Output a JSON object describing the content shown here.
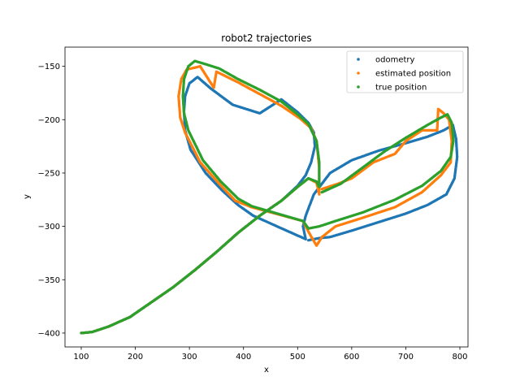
{
  "chart_data": {
    "type": "scatter",
    "title": "robot2 trajectories",
    "xlabel": "x",
    "ylabel": "y",
    "xlim": [
      70,
      815
    ],
    "ylim": [
      -413,
      -132
    ],
    "x_ticks": [
      100,
      200,
      300,
      400,
      500,
      600,
      700,
      800
    ],
    "y_ticks": [
      -400,
      -350,
      -300,
      -250,
      -200,
      -150
    ],
    "grid": false,
    "legend_position": "top-right",
    "series": [
      {
        "name": "odometry",
        "color": "#1f77b4",
        "points": [
          [
            100,
            -400
          ],
          [
            120,
            -399
          ],
          [
            150,
            -394
          ],
          [
            190,
            -385
          ],
          [
            230,
            -371
          ],
          [
            270,
            -357
          ],
          [
            310,
            -341
          ],
          [
            350,
            -324
          ],
          [
            390,
            -306
          ],
          [
            430,
            -290
          ],
          [
            470,
            -276
          ],
          [
            500,
            -262
          ],
          [
            515,
            -252
          ],
          [
            525,
            -240
          ],
          [
            532,
            -225
          ],
          [
            530,
            -212
          ],
          [
            520,
            -203
          ],
          [
            500,
            -193
          ],
          [
            470,
            -181
          ],
          [
            430,
            -194
          ],
          [
            380,
            -186
          ],
          [
            340,
            -171
          ],
          [
            315,
            -160
          ],
          [
            300,
            -166
          ],
          [
            292,
            -178
          ],
          [
            290,
            -192
          ],
          [
            292,
            -210
          ],
          [
            302,
            -228
          ],
          [
            330,
            -250
          ],
          [
            360,
            -266
          ],
          [
            390,
            -280
          ],
          [
            418,
            -290
          ],
          [
            515,
            -312
          ],
          [
            510,
            -300
          ],
          [
            515,
            -290
          ],
          [
            530,
            -270
          ],
          [
            560,
            -250
          ],
          [
            600,
            -238
          ],
          [
            650,
            -229
          ],
          [
            700,
            -222
          ],
          [
            740,
            -216
          ],
          [
            770,
            -210
          ],
          [
            787,
            -205
          ],
          [
            793,
            -218
          ],
          [
            795,
            -235
          ],
          [
            790,
            -255
          ],
          [
            775,
            -270
          ],
          [
            740,
            -280
          ],
          [
            700,
            -288
          ],
          [
            650,
            -296
          ],
          [
            600,
            -304
          ],
          [
            560,
            -310
          ],
          [
            540,
            -311
          ],
          [
            520,
            -313
          ]
        ]
      },
      {
        "name": "estimated position",
        "color": "#ff7f0e",
        "points": [
          [
            100,
            -400
          ],
          [
            120,
            -399
          ],
          [
            150,
            -394
          ],
          [
            190,
            -385
          ],
          [
            230,
            -371
          ],
          [
            270,
            -357
          ],
          [
            310,
            -341
          ],
          [
            350,
            -324
          ],
          [
            390,
            -306
          ],
          [
            430,
            -290
          ],
          [
            470,
            -276
          ],
          [
            500,
            -263
          ],
          [
            520,
            -255
          ],
          [
            535,
            -259
          ],
          [
            540,
            -270
          ],
          [
            540,
            -245
          ],
          [
            535,
            -220
          ],
          [
            525,
            -208
          ],
          [
            505,
            -199
          ],
          [
            470,
            -187
          ],
          [
            430,
            -176
          ],
          [
            390,
            -165
          ],
          [
            350,
            -155
          ],
          [
            345,
            -170
          ],
          [
            335,
            -162
          ],
          [
            320,
            -150
          ],
          [
            295,
            -153
          ],
          [
            285,
            -162
          ],
          [
            280,
            -178
          ],
          [
            283,
            -198
          ],
          [
            292,
            -212
          ],
          [
            320,
            -240
          ],
          [
            355,
            -260
          ],
          [
            385,
            -276
          ],
          [
            415,
            -282
          ],
          [
            510,
            -295
          ],
          [
            520,
            -305
          ],
          [
            535,
            -318
          ],
          [
            545,
            -310
          ],
          [
            570,
            -300
          ],
          [
            620,
            -292
          ],
          [
            680,
            -282
          ],
          [
            730,
            -268
          ],
          [
            765,
            -252
          ],
          [
            783,
            -240
          ],
          [
            785,
            -220
          ],
          [
            780,
            -200
          ],
          [
            770,
            -194
          ],
          [
            760,
            -190
          ],
          [
            758,
            -210
          ],
          [
            730,
            -210
          ],
          [
            700,
            -220
          ],
          [
            680,
            -232
          ],
          [
            640,
            -240
          ],
          [
            600,
            -255
          ],
          [
            575,
            -260
          ],
          [
            545,
            -265
          ]
        ]
      },
      {
        "name": "true position",
        "color": "#2ca02c",
        "points": [
          [
            100,
            -400
          ],
          [
            120,
            -399
          ],
          [
            150,
            -394
          ],
          [
            190,
            -385
          ],
          [
            230,
            -371
          ],
          [
            270,
            -357
          ],
          [
            310,
            -341
          ],
          [
            350,
            -324
          ],
          [
            390,
            -306
          ],
          [
            430,
            -290
          ],
          [
            470,
            -276
          ],
          [
            500,
            -263
          ],
          [
            520,
            -255
          ],
          [
            535,
            -258
          ],
          [
            540,
            -263
          ],
          [
            540,
            -240
          ],
          [
            535,
            -220
          ],
          [
            520,
            -204
          ],
          [
            500,
            -195
          ],
          [
            470,
            -183
          ],
          [
            430,
            -172
          ],
          [
            390,
            -162
          ],
          [
            355,
            -152
          ],
          [
            330,
            -148
          ],
          [
            310,
            -145
          ],
          [
            298,
            -150
          ],
          [
            290,
            -162
          ],
          [
            288,
            -178
          ],
          [
            290,
            -194
          ],
          [
            298,
            -210
          ],
          [
            325,
            -238
          ],
          [
            358,
            -258
          ],
          [
            390,
            -274
          ],
          [
            415,
            -281
          ],
          [
            510,
            -295
          ],
          [
            520,
            -302
          ],
          [
            540,
            -300
          ],
          [
            570,
            -295
          ],
          [
            620,
            -287
          ],
          [
            680,
            -275
          ],
          [
            730,
            -262
          ],
          [
            765,
            -248
          ],
          [
            783,
            -235
          ],
          [
            788,
            -220
          ],
          [
            785,
            -203
          ],
          [
            777,
            -195
          ],
          [
            765,
            -198
          ],
          [
            740,
            -205
          ],
          [
            700,
            -217
          ],
          [
            660,
            -230
          ],
          [
            620,
            -245
          ],
          [
            580,
            -260
          ],
          [
            545,
            -268
          ]
        ]
      }
    ]
  }
}
